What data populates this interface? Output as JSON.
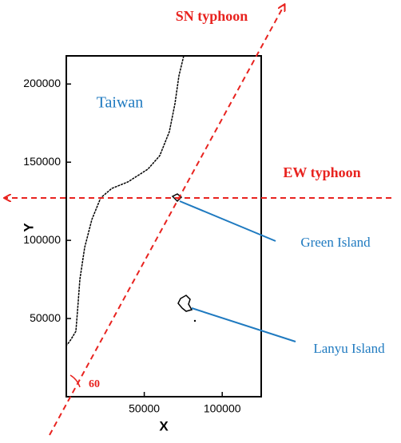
{
  "chart_data": {
    "type": "map",
    "xlabel": "X",
    "ylabel": "Y",
    "xlim": [
      0,
      125000
    ],
    "ylim": [
      0,
      218000
    ],
    "xticks": [
      50000,
      100000
    ],
    "yticks": [
      50000,
      100000,
      150000,
      200000
    ],
    "annotations": {
      "land": "Taiwan",
      "sn": "SN typhoon",
      "ew": "EW typhoon",
      "green": "Green Island",
      "lanyu": "Lanyu Island",
      "angle": "60"
    }
  }
}
